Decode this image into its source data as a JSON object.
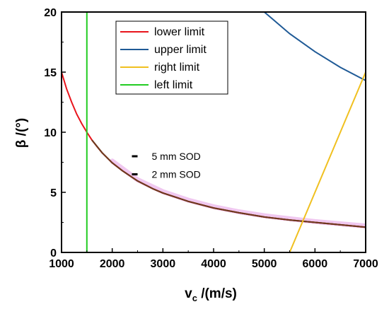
{
  "chart_data": {
    "type": "line",
    "xlabel": "v",
    "xlabel_sub": "c",
    "xlabel_unit": " /(m/s)",
    "ylabel": "β /(°)",
    "xlim": [
      1000,
      7000
    ],
    "ylim": [
      0,
      20
    ],
    "xticks": [
      1000,
      2000,
      3000,
      4000,
      5000,
      6000,
      7000
    ],
    "yticks": [
      0,
      5,
      10,
      15,
      20
    ],
    "grid": false,
    "legend_position": "top-center",
    "series": [
      {
        "name": "lower limit",
        "color": "#e8141c",
        "x": [
          1000,
          1100,
          1200,
          1300,
          1400,
          1500,
          1600,
          1700,
          1800,
          2000,
          2200,
          2500,
          2800,
          3000,
          3500,
          4000,
          4500,
          5000,
          5500,
          6000,
          6500,
          7000
        ],
        "y": [
          15.0,
          13.6,
          12.5,
          11.5,
          10.7,
          10.0,
          9.35,
          8.8,
          8.3,
          7.45,
          6.8,
          5.95,
          5.3,
          4.95,
          4.25,
          3.7,
          3.3,
          2.95,
          2.7,
          2.5,
          2.3,
          2.1
        ]
      },
      {
        "name": "upper limit",
        "color": "#1f5a96",
        "x": [
          5000,
          5500,
          6000,
          6500,
          7000
        ],
        "y": [
          20.0,
          18.2,
          16.7,
          15.4,
          14.3
        ]
      },
      {
        "name": "right limit",
        "color": "#f0c020",
        "x": [
          5500,
          7000
        ],
        "y": [
          0,
          15.0
        ]
      },
      {
        "name": "left limit",
        "color": "#22cc22",
        "x": [
          1500,
          1500
        ],
        "y": [
          0,
          20
        ]
      }
    ],
    "overlays": [
      {
        "label": "5 mm SOD",
        "color": "#f0c8f0",
        "x": [
          2000,
          2500,
          3000,
          3500,
          4000,
          4500,
          5000,
          5500,
          6000,
          6500,
          7000
        ],
        "y": [
          7.6,
          6.05,
          5.05,
          4.35,
          3.8,
          3.38,
          3.05,
          2.8,
          2.57,
          2.38,
          2.2
        ]
      },
      {
        "label": "2 mm SOD",
        "color": "#6b3a1e",
        "x": [
          1600,
          1800,
          2000,
          2200,
          2500,
          2800,
          3000,
          3500,
          4000,
          4500,
          5000,
          5500,
          6000,
          6500,
          7000
        ],
        "y": [
          9.35,
          8.3,
          7.45,
          6.8,
          5.95,
          5.3,
          4.95,
          4.25,
          3.7,
          3.3,
          2.95,
          2.7,
          2.5,
          2.3,
          2.1
        ]
      }
    ],
    "annotations": [
      {
        "text": "5 mm SOD",
        "x": 2500,
        "y": 8.0
      },
      {
        "text": "2 mm SOD",
        "x": 2500,
        "y": 6.5
      }
    ]
  }
}
